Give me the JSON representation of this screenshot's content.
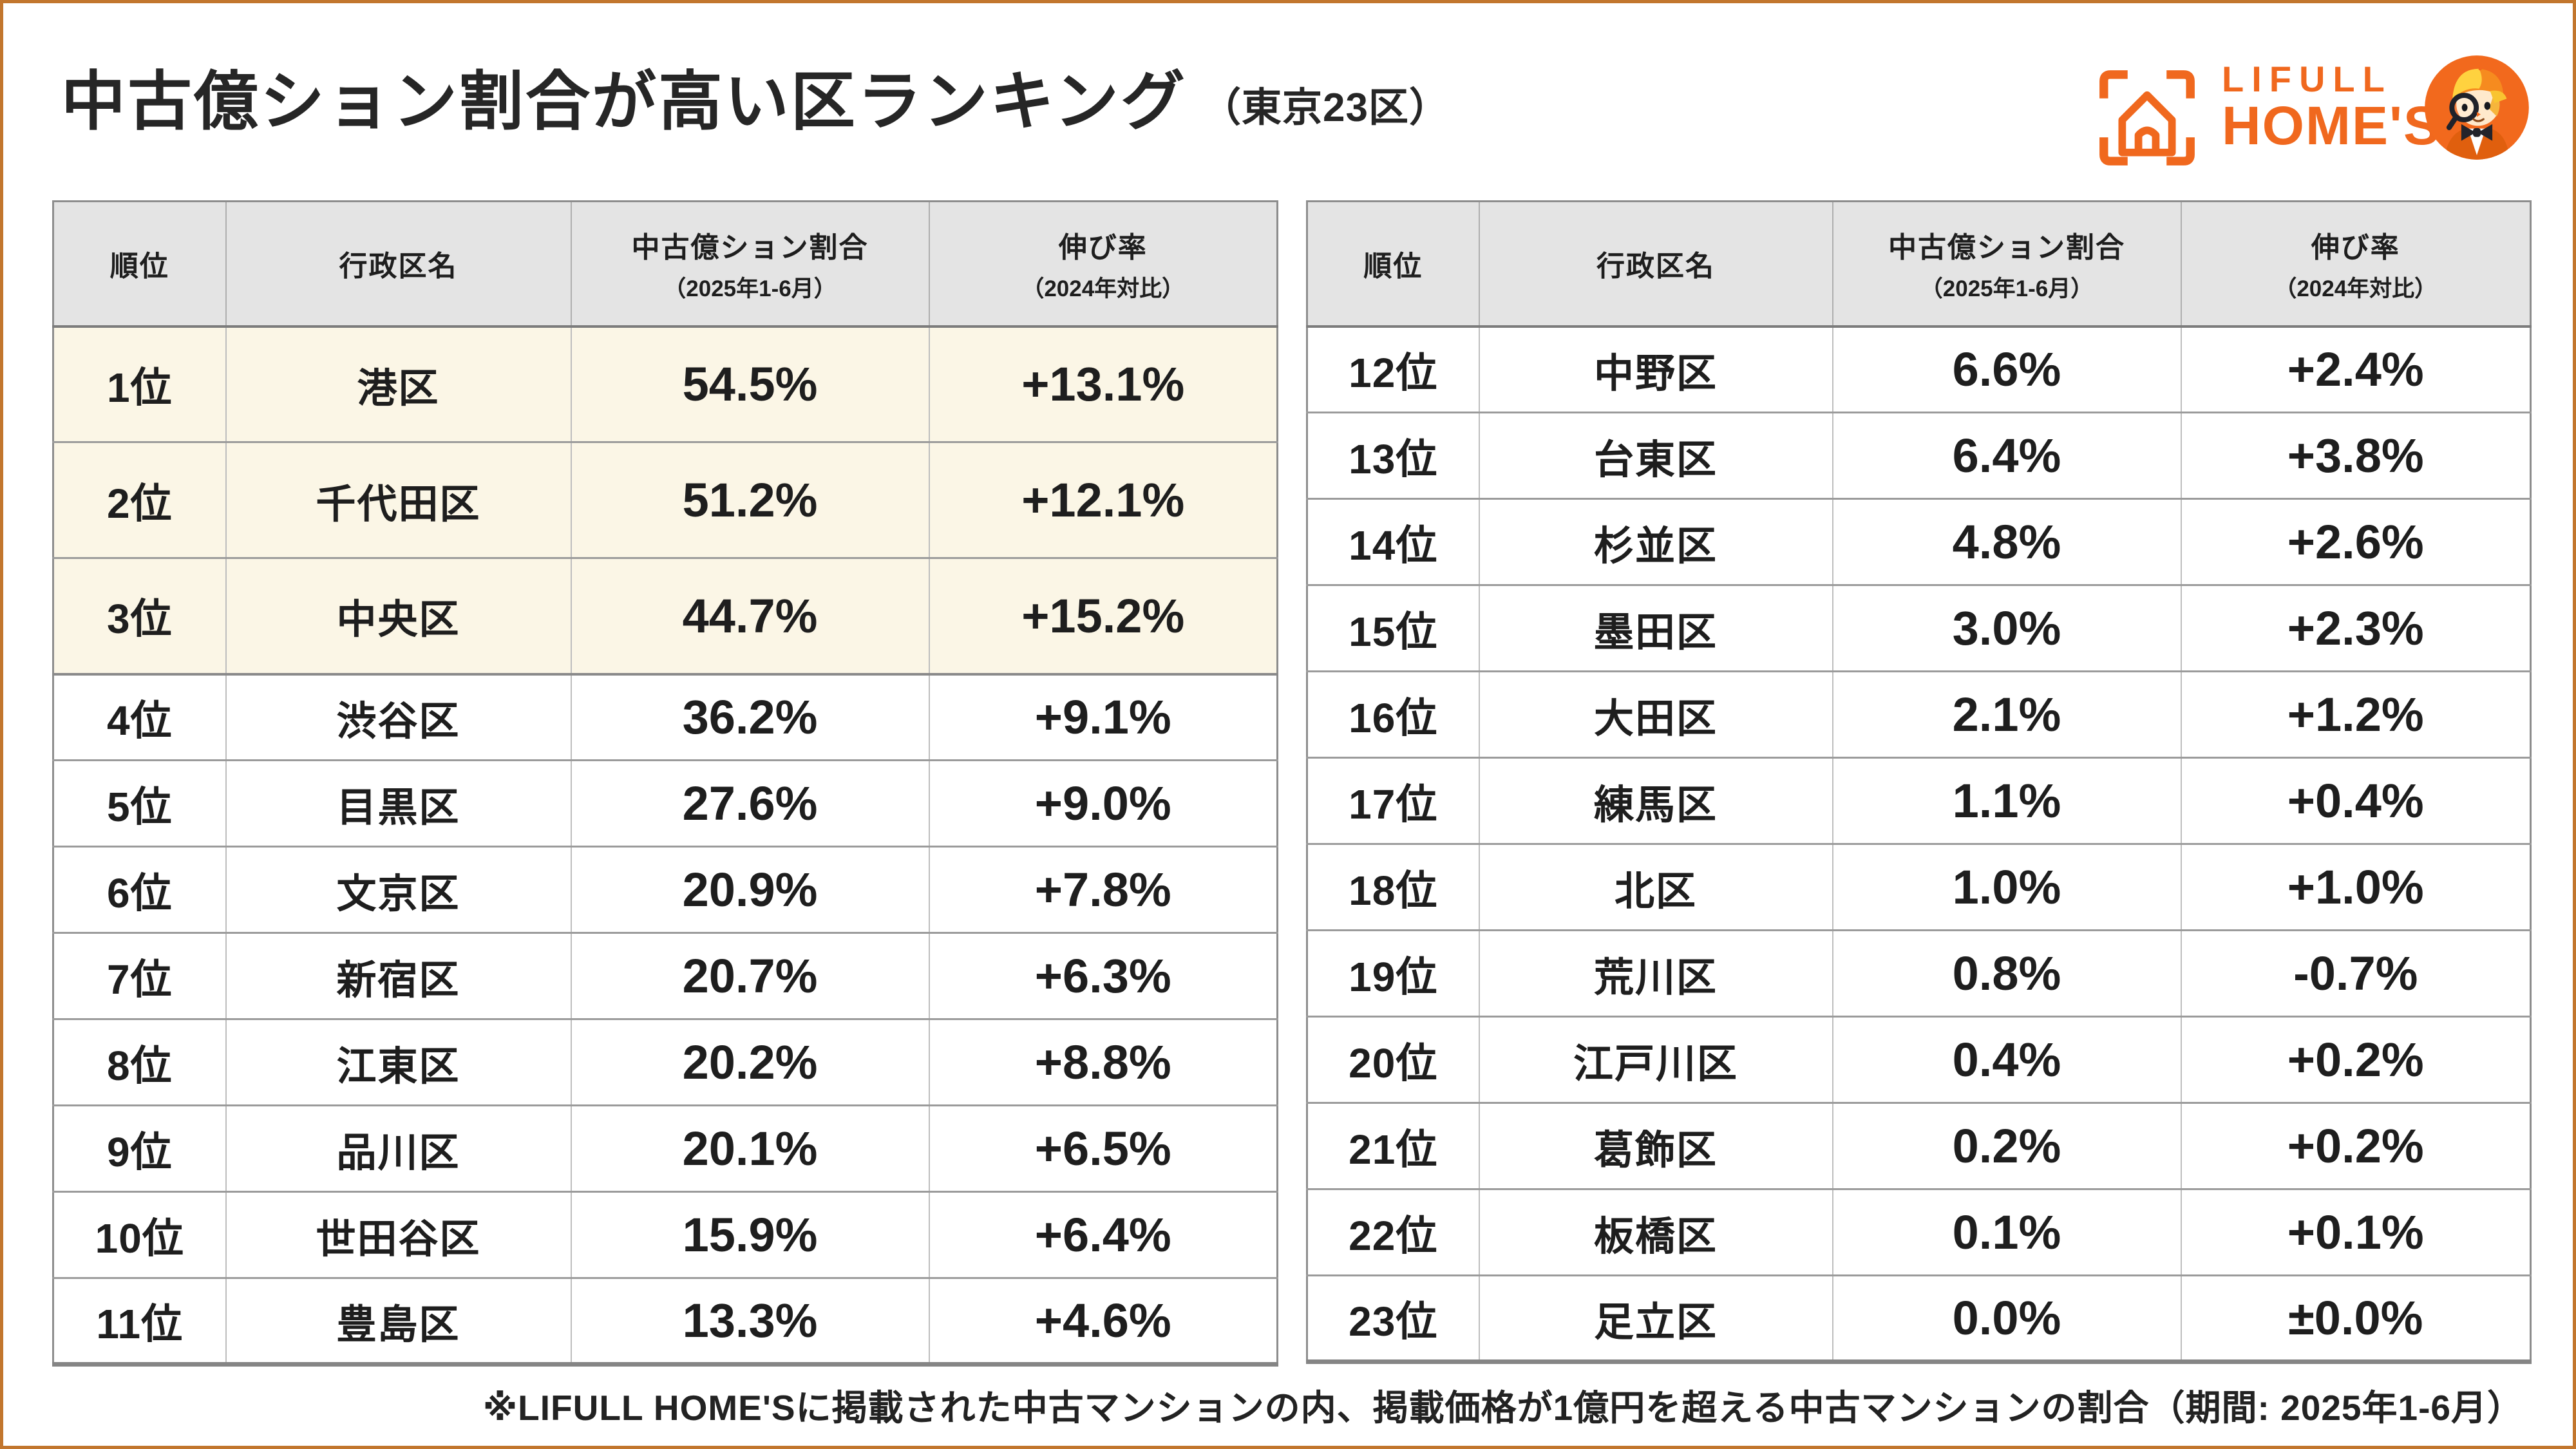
{
  "page": {
    "title": "中古億ション割合が高い区ランキング",
    "title_suffix": "（東京23区）",
    "footnote": "※LIFULL HOME'Sに掲載された中古マンションの内、掲載価格が1億円を超える中古マンションの割合（期間: 2025年1-6月）"
  },
  "logo": {
    "line1": "LIFULL",
    "line2": "HOME'S",
    "house_icon": "house-viewfinder-icon",
    "mascot_icon": "detective-boy-mascot-icon"
  },
  "colors": {
    "brand_orange": "#F0681E",
    "page_border_orange": "#C2762E",
    "header_bg": "#E4E4E4",
    "top3_highlight_bg": "#FBF6E6",
    "grid_line": "#9B9B9B"
  },
  "table_headers": [
    {
      "main": "順位",
      "sub": ""
    },
    {
      "main": "行政区名",
      "sub": ""
    },
    {
      "main": "中古億ション割合",
      "sub": "（2025年1-6月）"
    },
    {
      "main": "伸び率",
      "sub": "（2024年対比）"
    }
  ],
  "chart_data": {
    "type": "table",
    "title": "中古億ション割合が高い区ランキング（東京23区）",
    "columns": [
      "順位",
      "行政区名",
      "中古億ション割合（2025年1-6月）",
      "伸び率（2024年対比）"
    ],
    "split_at": 11,
    "rows": [
      {
        "rank": "1位",
        "ward": "港区",
        "ratio": "54.5%",
        "growth": "+13.1%",
        "highlight": true
      },
      {
        "rank": "2位",
        "ward": "千代田区",
        "ratio": "51.2%",
        "growth": "+12.1%",
        "highlight": true
      },
      {
        "rank": "3位",
        "ward": "中央区",
        "ratio": "44.7%",
        "growth": "+15.2%",
        "highlight": true
      },
      {
        "rank": "4位",
        "ward": "渋谷区",
        "ratio": "36.2%",
        "growth": "+9.1%",
        "highlight": false
      },
      {
        "rank": "5位",
        "ward": "目黒区",
        "ratio": "27.6%",
        "growth": "+9.0%",
        "highlight": false
      },
      {
        "rank": "6位",
        "ward": "文京区",
        "ratio": "20.9%",
        "growth": "+7.8%",
        "highlight": false
      },
      {
        "rank": "7位",
        "ward": "新宿区",
        "ratio": "20.7%",
        "growth": "+6.3%",
        "highlight": false
      },
      {
        "rank": "8位",
        "ward": "江東区",
        "ratio": "20.2%",
        "growth": "+8.8%",
        "highlight": false
      },
      {
        "rank": "9位",
        "ward": "品川区",
        "ratio": "20.1%",
        "growth": "+6.5%",
        "highlight": false
      },
      {
        "rank": "10位",
        "ward": "世田谷区",
        "ratio": "15.9%",
        "growth": "+6.4%",
        "highlight": false
      },
      {
        "rank": "11位",
        "ward": "豊島区",
        "ratio": "13.3%",
        "growth": "+4.6%",
        "highlight": false
      },
      {
        "rank": "12位",
        "ward": "中野区",
        "ratio": "6.6%",
        "growth": "+2.4%",
        "highlight": false
      },
      {
        "rank": "13位",
        "ward": "台東区",
        "ratio": "6.4%",
        "growth": "+3.8%",
        "highlight": false
      },
      {
        "rank": "14位",
        "ward": "杉並区",
        "ratio": "4.8%",
        "growth": "+2.6%",
        "highlight": false
      },
      {
        "rank": "15位",
        "ward": "墨田区",
        "ratio": "3.0%",
        "growth": "+2.3%",
        "highlight": false
      },
      {
        "rank": "16位",
        "ward": "大田区",
        "ratio": "2.1%",
        "growth": "+1.2%",
        "highlight": false
      },
      {
        "rank": "17位",
        "ward": "練馬区",
        "ratio": "1.1%",
        "growth": "+0.4%",
        "highlight": false
      },
      {
        "rank": "18位",
        "ward": "北区",
        "ratio": "1.0%",
        "growth": "+1.0%",
        "highlight": false
      },
      {
        "rank": "19位",
        "ward": "荒川区",
        "ratio": "0.8%",
        "growth": "-0.7%",
        "highlight": false
      },
      {
        "rank": "20位",
        "ward": "江戸川区",
        "ratio": "0.4%",
        "growth": "+0.2%",
        "highlight": false
      },
      {
        "rank": "21位",
        "ward": "葛飾区",
        "ratio": "0.2%",
        "growth": "+0.2%",
        "highlight": false
      },
      {
        "rank": "22位",
        "ward": "板橋区",
        "ratio": "0.1%",
        "growth": "+0.1%",
        "highlight": false
      },
      {
        "rank": "23位",
        "ward": "足立区",
        "ratio": "0.0%",
        "growth": "±0.0%",
        "highlight": false
      }
    ]
  }
}
